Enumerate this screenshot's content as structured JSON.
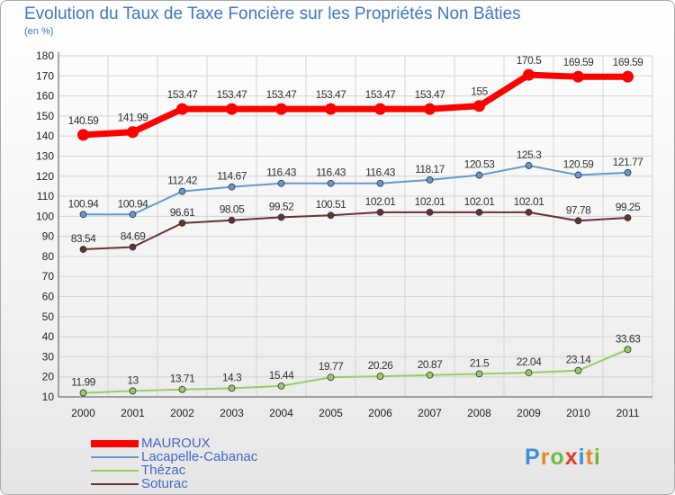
{
  "title": "Evolution du Taux de Taxe Foncière sur les Propriétés Non Bâties",
  "subtitle": "(en %)",
  "logo": "Proxiti",
  "chart_data": {
    "type": "line",
    "x": [
      "2000",
      "2001",
      "2002",
      "2003",
      "2004",
      "2005",
      "2006",
      "2007",
      "2008",
      "2009",
      "2010",
      "2011"
    ],
    "ylim": [
      10,
      180
    ],
    "yticks": [
      10,
      20,
      30,
      40,
      50,
      60,
      70,
      80,
      90,
      100,
      110,
      120,
      130,
      140,
      150,
      160,
      170,
      180
    ],
    "grid": true,
    "legend_position": "bottom-left",
    "series": [
      {
        "name": "MAUROUX",
        "color": "#ff0000",
        "values": [
          140.59,
          141.99,
          153.47,
          153.47,
          153.47,
          153.47,
          153.47,
          153.47,
          155,
          170.5,
          169.59,
          169.59
        ],
        "labels": [
          "140.59",
          "141.99",
          "153.47",
          "153.47",
          "153.47",
          "153.47",
          "153.47",
          "153.47",
          "155",
          "170.5",
          "169.59",
          "169.59"
        ]
      },
      {
        "name": "Lacapelle-Cabanac",
        "color": "#6699cc",
        "values": [
          100.94,
          100.94,
          112.42,
          114.67,
          116.43,
          116.43,
          116.43,
          118.17,
          120.53,
          125.3,
          120.59,
          121.77
        ],
        "labels": [
          "100.94",
          "100.94",
          "112.42",
          "114.67",
          "116.43",
          "116.43",
          "116.43",
          "118.17",
          "120.53",
          "125.3",
          "120.59",
          "121.77"
        ]
      },
      {
        "name": "Thézac",
        "color": "#99cc66",
        "values": [
          11.99,
          13,
          13.71,
          14.3,
          15.44,
          19.77,
          20.26,
          20.87,
          21.5,
          22.04,
          23.14,
          33.63
        ],
        "labels": [
          "11.99",
          "13",
          "13.71",
          "14.3",
          "15.44",
          "19.77",
          "20.26",
          "20.87",
          "21.5",
          "22.04",
          "23.14",
          "33.63"
        ]
      },
      {
        "name": "Soturac",
        "color": "#663333",
        "values": [
          83.54,
          84.69,
          96.61,
          98.05,
          99.52,
          100.51,
          102.01,
          102.01,
          102.01,
          102.01,
          97.78,
          99.25
        ],
        "labels": [
          "83.54",
          "84.69",
          "96.61",
          "98.05",
          "99.52",
          "100.51",
          "102.01",
          "102.01",
          "102.01",
          "102.01",
          "97.78",
          "99.25"
        ]
      }
    ]
  }
}
